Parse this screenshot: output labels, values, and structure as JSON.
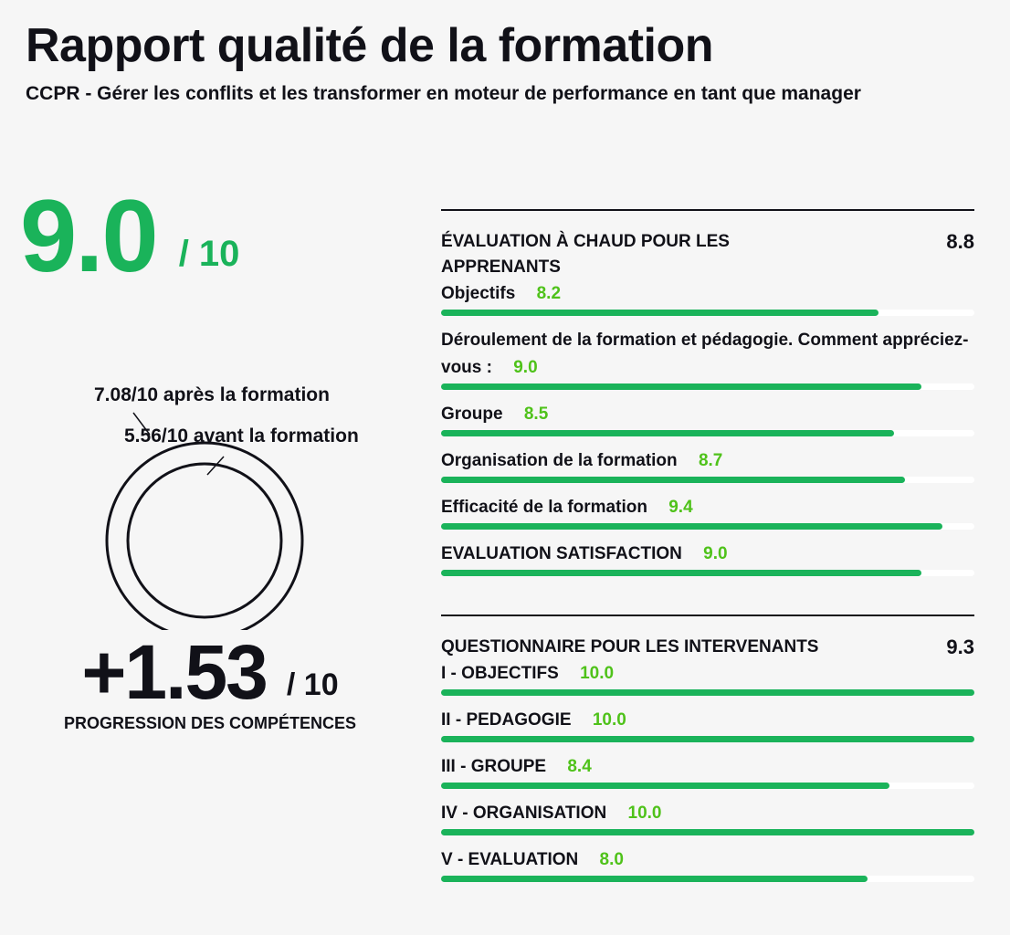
{
  "header": {
    "title": "Rapport qualité de la formation",
    "subtitle": "CCPR - Gérer les conflits et les transformer en moteur de performance en tant que manager"
  },
  "overall": {
    "score": "9.0",
    "out_of": "/ 10"
  },
  "competences": {
    "after_label": "7.08/10 après la formation",
    "before_label": "5.56/10 avant la formation",
    "after_value": 7.08,
    "before_value": 5.56,
    "progression": "+1.53",
    "progression_out_of": "/ 10",
    "progression_label": "PROGRESSION DES COMPÉTENCES"
  },
  "sections": [
    {
      "title": "ÉVALUATION À CHAUD POUR LES APPRENANTS",
      "score": "8.8",
      "items": [
        {
          "label": "Objectifs",
          "score": "8.2",
          "value": 8.2
        },
        {
          "label": "Déroulement de la formation et pédagogie. Comment appréciez-vous :",
          "score": "9.0",
          "value": 9.0
        },
        {
          "label": "Groupe",
          "score": "8.5",
          "value": 8.5
        },
        {
          "label": "Organisation de la formation",
          "score": "8.7",
          "value": 8.7
        },
        {
          "label": "Efficacité de la formation",
          "score": "9.4",
          "value": 9.4
        },
        {
          "label": "EVALUATION SATISFACTION",
          "score": "9.0",
          "value": 9.0
        }
      ]
    },
    {
      "title": "QUESTIONNAIRE POUR LES INTERVENANTS",
      "score": "9.3",
      "items": [
        {
          "label": "I - OBJECTIFS",
          "score": "10.0",
          "value": 10.0
        },
        {
          "label": "II - PEDAGOGIE",
          "score": "10.0",
          "value": 10.0
        },
        {
          "label": "III - GROUPE",
          "score": "8.4",
          "value": 8.4
        },
        {
          "label": "IV - ORGANISATION",
          "score": "10.0",
          "value": 10.0
        },
        {
          "label": "V - EVALUATION",
          "score": "8.0",
          "value": 8.0
        }
      ]
    }
  ],
  "colors": {
    "accent": "#1ab35a",
    "score_text": "#4fc21a",
    "text": "#111118",
    "background": "#f6f6f6"
  }
}
